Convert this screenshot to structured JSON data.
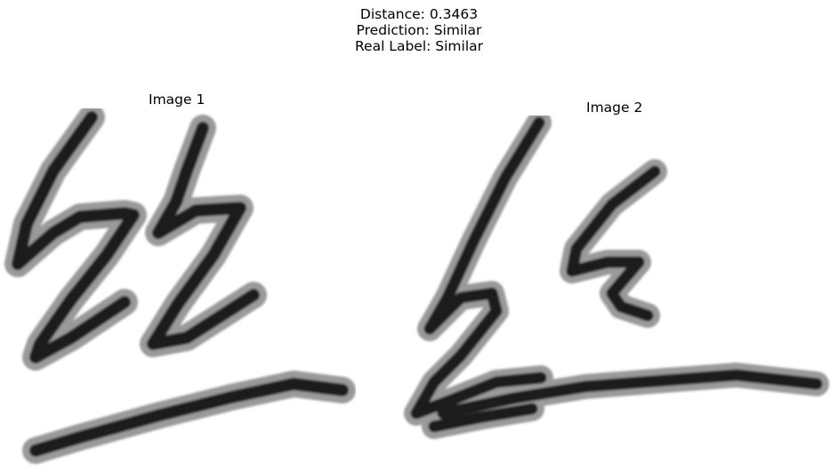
{
  "header": {
    "distance_line": "Distance: 0.3463",
    "prediction_line": "Prediction: Similar",
    "real_label_line": "Real Label: Similar"
  },
  "panels": [
    {
      "title": "Image 1"
    },
    {
      "title": "Image 2"
    }
  ],
  "colors": {
    "ink": "#1a1a1a",
    "halo": "#9a9a9a",
    "background": "#ffffff"
  }
}
